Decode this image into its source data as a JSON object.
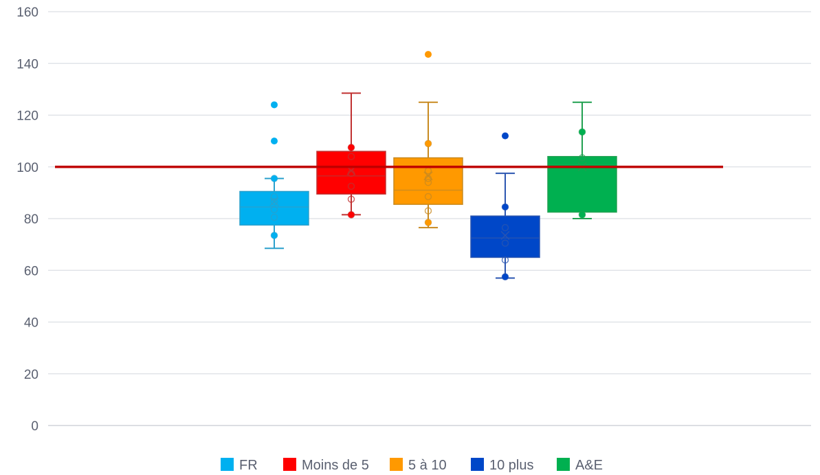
{
  "chart_data": {
    "type": "boxplot",
    "title": "",
    "xlabel": "",
    "ylabel": "",
    "ylim": [
      0,
      160
    ],
    "yticks": [
      0,
      20,
      40,
      60,
      80,
      100,
      120,
      140,
      160
    ],
    "grid": true,
    "legend_position": "bottom",
    "reference_line": {
      "value": 100,
      "color": "#c00000"
    },
    "series": [
      {
        "name": "FR",
        "color": "#00b0f0",
        "fill": "#00b0f0",
        "stroke": "#2aa0cc",
        "q1": 77.5,
        "median": 84.5,
        "q3": 90.5,
        "whisker_low": 68.5,
        "whisker_high": 95.5,
        "mean": 86.5,
        "outliers": [
          110,
          124
        ],
        "points": [
          73.5,
          80.5,
          83.5,
          86.5,
          88.5,
          95.5
        ]
      },
      {
        "name": "Moins de 5",
        "color": "#ff0000",
        "fill": "#ff0000",
        "stroke": "#c03030",
        "q1": 89.5,
        "median": 96.5,
        "q3": 106,
        "whisker_low": 81.5,
        "whisker_high": 128.5,
        "mean": 98.5,
        "outliers": [],
        "points": [
          81.5,
          87.5,
          92.5,
          97.5,
          104,
          107.5
        ]
      },
      {
        "name": "5 à 10",
        "color": "#ff9900",
        "fill": "#ff9900",
        "stroke": "#c88a20",
        "q1": 85.5,
        "median": 91,
        "q3": 103.5,
        "whisker_low": 76.5,
        "whisker_high": 125,
        "mean": 96.5,
        "outliers": [
          143.5
        ],
        "points": [
          78.5,
          83,
          88.5,
          94,
          95.5,
          98.5,
          109
        ]
      },
      {
        "name": "10 plus",
        "color": "#0047c8",
        "fill": "#0047c8",
        "stroke": "#2a55b0",
        "q1": 65,
        "median": 72.5,
        "q3": 81,
        "whisker_low": 57,
        "whisker_high": 97.5,
        "mean": 73.5,
        "outliers": [
          112
        ],
        "points": [
          57.5,
          64,
          70.5,
          76.5,
          84.5
        ]
      },
      {
        "name": "A&E",
        "color": "#00b050",
        "fill": "#00b050",
        "stroke": "#20a050",
        "q1": 82.5,
        "median": 100,
        "q3": 104,
        "whisker_low": 80,
        "whisker_high": 125,
        "mean": 100,
        "outliers": [],
        "points": [
          81.5,
          103.5,
          113.5
        ]
      }
    ]
  }
}
